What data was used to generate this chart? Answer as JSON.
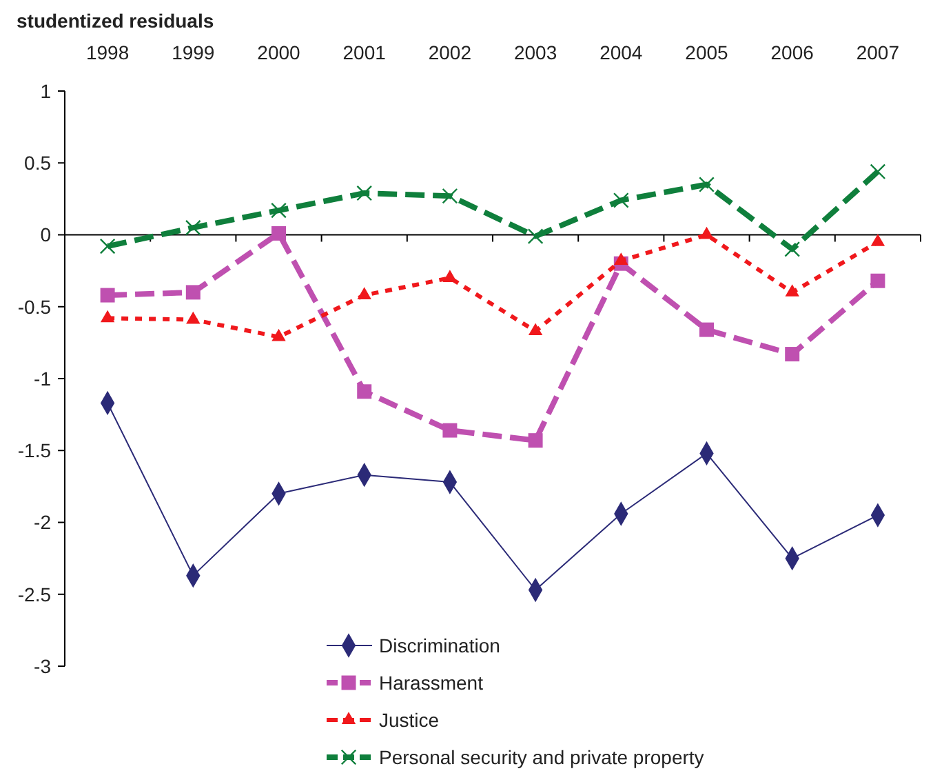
{
  "chart_data": {
    "type": "line",
    "ylabel": "studentized residuals",
    "categories": [
      "1998",
      "1999",
      "2000",
      "2001",
      "2002",
      "2003",
      "2004",
      "2005",
      "2006",
      "2007"
    ],
    "ylim": [
      -3,
      1
    ],
    "yticks": [
      -3,
      -2.5,
      -2,
      -1.5,
      -1,
      -0.5,
      0,
      0.5,
      1
    ],
    "legend": "bottom",
    "series": [
      {
        "name": "Discrimination",
        "color": "#2b2a77",
        "marker": "diamond",
        "line_style": "solid",
        "values": [
          -1.17,
          -2.37,
          -1.8,
          -1.67,
          -1.72,
          -2.47,
          -1.94,
          -1.52,
          -2.25,
          -1.95
        ]
      },
      {
        "name": "Harassment",
        "color": "#bf50b0",
        "marker": "square",
        "line_style": "dashed",
        "values": [
          -0.42,
          -0.4,
          0.01,
          -1.09,
          -1.36,
          -1.43,
          -0.2,
          -0.66,
          -0.83,
          -0.32
        ]
      },
      {
        "name": "Justice",
        "color": "#f0181c",
        "marker": "triangle",
        "line_style": "dotted",
        "values": [
          -0.58,
          -0.59,
          -0.71,
          -0.42,
          -0.3,
          -0.67,
          -0.18,
          0,
          -0.4,
          -0.05
        ]
      },
      {
        "name": "Personal security and private property",
        "color": "#0f7f3c",
        "marker": "cross",
        "line_style": "dashed",
        "values": [
          -0.08,
          0.05,
          0.17,
          0.29,
          0.27,
          -0.01,
          0.24,
          0.35,
          -0.1,
          0.44
        ]
      }
    ]
  }
}
